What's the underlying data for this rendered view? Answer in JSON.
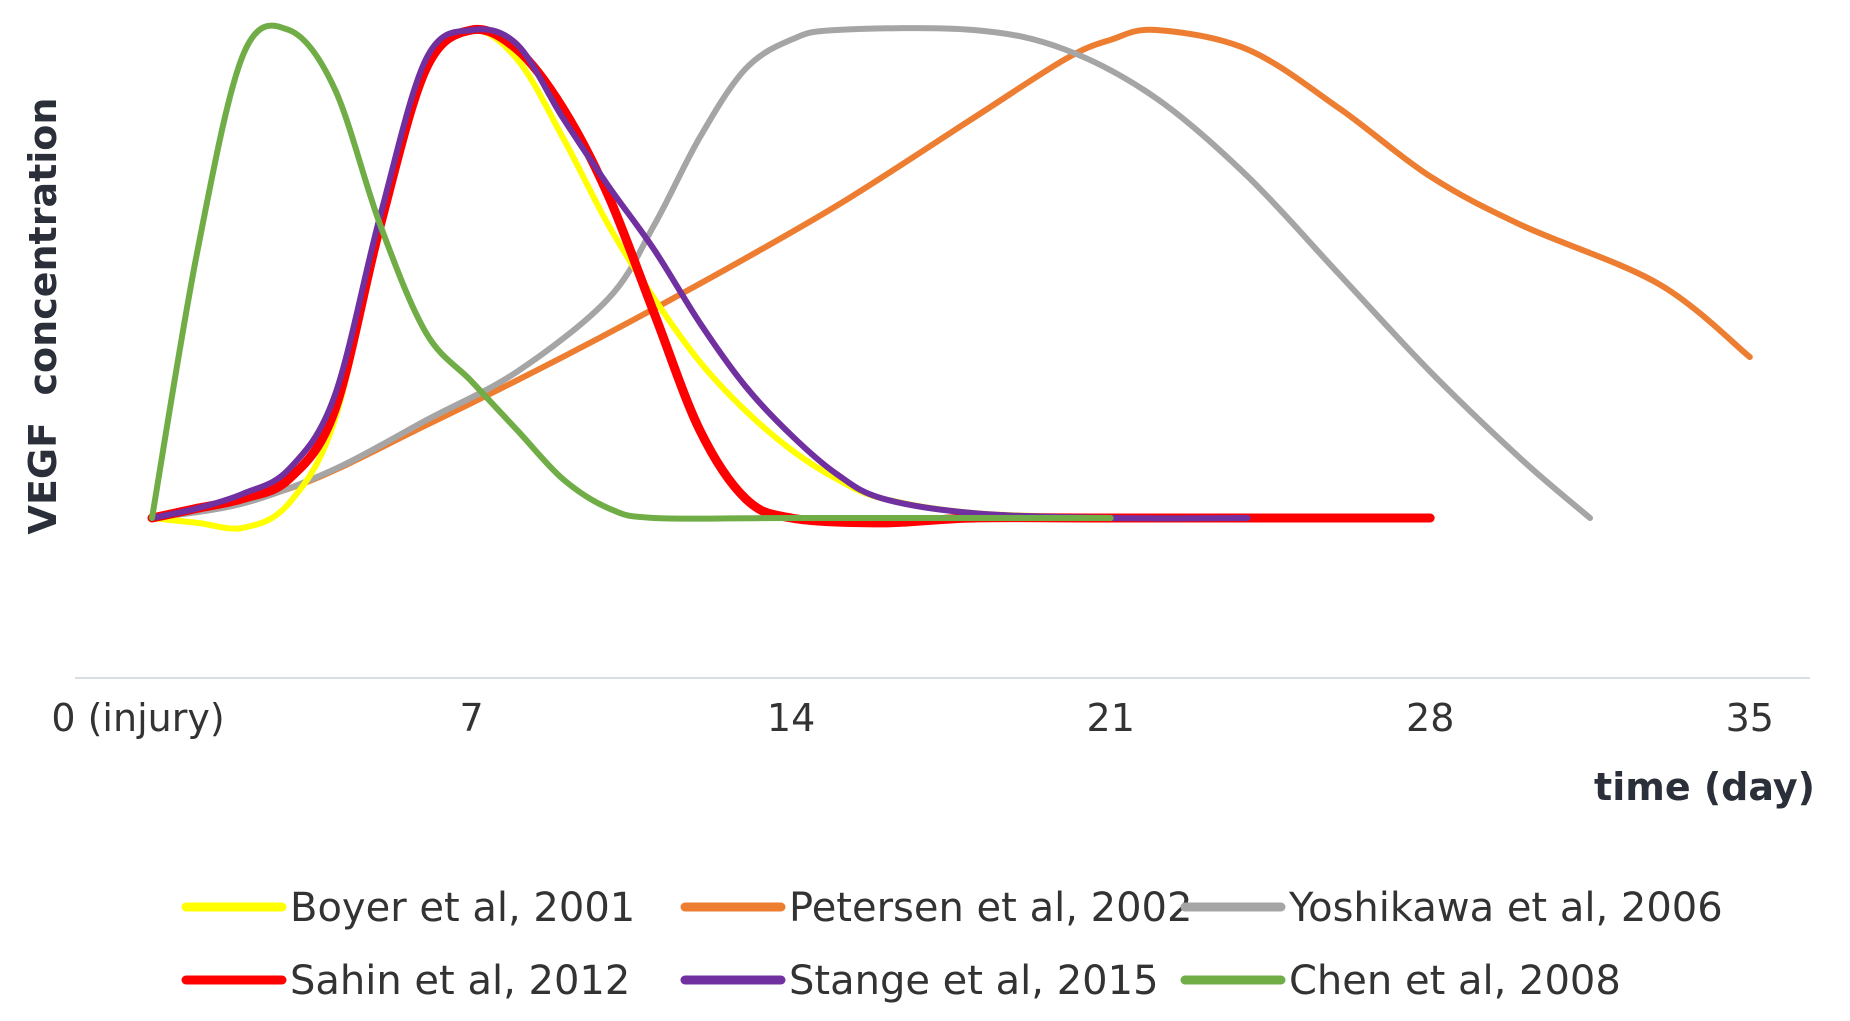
{
  "chart_data": {
    "type": "line",
    "title": "",
    "xlabel": "time (day)",
    "ylabel": "VEGF  concentration",
    "x_ticks": [
      "0 (injury)",
      "7",
      "14",
      "21",
      "28",
      "35"
    ],
    "x_tick_values": [
      0,
      7,
      14,
      21,
      28,
      35
    ],
    "xlim": [
      -1.7,
      36
    ],
    "ylim": [
      -0.33,
      1.0
    ],
    "y_axis_labels_shown": false,
    "grid": false,
    "legend_position": "bottom",
    "series": [
      {
        "name": "Boyer et al, 2001",
        "color": "#FFFF00",
        "points": [
          [
            0,
            0
          ],
          [
            1,
            -0.01
          ],
          [
            2,
            -0.02
          ],
          [
            3,
            0.03
          ],
          [
            4,
            0.2
          ],
          [
            5,
            0.6
          ],
          [
            6,
            0.92
          ],
          [
            7,
            1.0
          ],
          [
            8,
            0.94
          ],
          [
            9,
            0.78
          ],
          [
            10,
            0.6
          ],
          [
            11,
            0.45
          ],
          [
            12,
            0.32
          ],
          [
            13,
            0.22
          ],
          [
            14,
            0.14
          ],
          [
            15,
            0.08
          ],
          [
            16,
            0.04
          ],
          [
            18,
            0.01
          ],
          [
            21,
            0.0
          ]
        ]
      },
      {
        "name": "Petersen et al, 2002",
        "color": "#ED7D31",
        "points": [
          [
            0,
            0
          ],
          [
            3,
            0.06
          ],
          [
            6,
            0.19
          ],
          [
            9,
            0.33
          ],
          [
            12,
            0.48
          ],
          [
            15,
            0.64
          ],
          [
            18,
            0.82
          ],
          [
            20,
            0.94
          ],
          [
            21,
            0.98
          ],
          [
            22,
            1.0
          ],
          [
            24,
            0.96
          ],
          [
            26,
            0.84
          ],
          [
            28,
            0.7
          ],
          [
            30,
            0.6
          ],
          [
            33,
            0.48
          ],
          [
            35,
            0.33
          ]
        ]
      },
      {
        "name": "Yoshikawa et al, 2006",
        "color": "#A5A5A5",
        "points": [
          [
            0,
            0
          ],
          [
            2,
            0.03
          ],
          [
            4,
            0.1
          ],
          [
            6,
            0.2
          ],
          [
            8,
            0.3
          ],
          [
            10,
            0.45
          ],
          [
            11,
            0.6
          ],
          [
            12,
            0.78
          ],
          [
            13,
            0.92
          ],
          [
            14,
            0.98
          ],
          [
            15,
            1.0
          ],
          [
            18,
            1.0
          ],
          [
            20,
            0.96
          ],
          [
            22,
            0.86
          ],
          [
            24,
            0.7
          ],
          [
            26,
            0.5
          ],
          [
            28,
            0.3
          ],
          [
            30,
            0.12
          ],
          [
            31.5,
            0.0
          ]
        ]
      },
      {
        "name": "Sahin et al, 2012",
        "color": "#FF0000",
        "points": [
          [
            0,
            0
          ],
          [
            1,
            0.02
          ],
          [
            2,
            0.04
          ],
          [
            3,
            0.08
          ],
          [
            4,
            0.22
          ],
          [
            5,
            0.6
          ],
          [
            6,
            0.92
          ],
          [
            7,
            1.0
          ],
          [
            8,
            0.96
          ],
          [
            9,
            0.84
          ],
          [
            10,
            0.66
          ],
          [
            11,
            0.42
          ],
          [
            12,
            0.18
          ],
          [
            13,
            0.04
          ],
          [
            14,
            0.0
          ],
          [
            16,
            -0.01
          ],
          [
            18,
            0.0
          ],
          [
            21,
            0.0
          ],
          [
            28,
            0.0
          ]
        ]
      },
      {
        "name": "Stange et al, 2015",
        "color": "#7030A0",
        "points": [
          [
            0,
            0
          ],
          [
            1,
            0.02
          ],
          [
            2,
            0.05
          ],
          [
            3,
            0.1
          ],
          [
            4,
            0.25
          ],
          [
            5,
            0.62
          ],
          [
            6,
            0.94
          ],
          [
            7,
            1.0
          ],
          [
            8,
            0.97
          ],
          [
            9,
            0.82
          ],
          [
            10,
            0.68
          ],
          [
            11,
            0.55
          ],
          [
            12,
            0.4
          ],
          [
            13,
            0.27
          ],
          [
            14,
            0.17
          ],
          [
            15,
            0.09
          ],
          [
            16,
            0.04
          ],
          [
            18,
            0.01
          ],
          [
            21,
            0.0
          ],
          [
            24,
            0.0
          ]
        ]
      },
      {
        "name": "Chen et al, 2008",
        "color": "#70AD47",
        "points": [
          [
            0,
            0
          ],
          [
            1,
            0.55
          ],
          [
            2,
            0.95
          ],
          [
            3,
            1.0
          ],
          [
            4,
            0.88
          ],
          [
            5,
            0.6
          ],
          [
            6,
            0.38
          ],
          [
            7,
            0.28
          ],
          [
            8,
            0.18
          ],
          [
            9,
            0.08
          ],
          [
            10,
            0.02
          ],
          [
            11,
            0.0
          ],
          [
            14,
            0.0
          ],
          [
            21,
            0.0
          ]
        ]
      }
    ]
  }
}
